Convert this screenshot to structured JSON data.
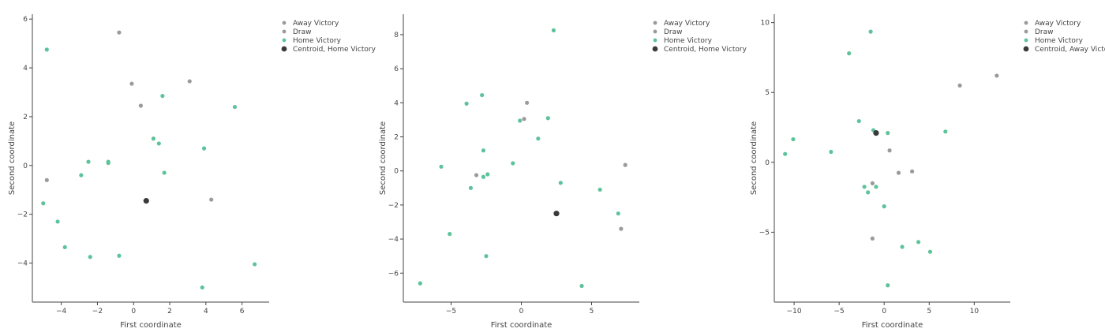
{
  "colors": {
    "away": "#9a9a9a",
    "draw": "#9a9a9a",
    "home": "#5dc39a",
    "centroid": "#3a3a3a",
    "axis": "#444444"
  },
  "chart_data": [
    {
      "type": "scatter",
      "xlabel": "First coordinate",
      "ylabel": "Second coordinate",
      "xlim": [
        -5.6,
        7.5
      ],
      "ylim": [
        -5.6,
        6.2
      ],
      "xticks": [
        -4,
        -2,
        0,
        2,
        4,
        6
      ],
      "yticks": [
        -4,
        -2,
        0,
        2,
        4,
        6
      ],
      "legend_position": "top-right",
      "series": [
        {
          "name": "Away Victory",
          "color_key": "away",
          "points": [
            [
              -0.8,
              5.45
            ],
            [
              3.1,
              3.45
            ]
          ]
        },
        {
          "name": "Draw",
          "color_key": "draw",
          "points": [
            [
              -0.1,
              3.35
            ],
            [
              0.4,
              2.45
            ],
            [
              -4.8,
              -0.6
            ],
            [
              4.3,
              -1.4
            ]
          ]
        },
        {
          "name": "Home Victory",
          "color_key": "home",
          "points": [
            [
              -4.8,
              4.75
            ],
            [
              1.6,
              2.85
            ],
            [
              5.6,
              2.4
            ],
            [
              1.1,
              1.1
            ],
            [
              1.4,
              0.9
            ],
            [
              3.9,
              0.7
            ],
            [
              -2.5,
              0.15
            ],
            [
              -1.4,
              0.1
            ],
            [
              -1.4,
              0.15
            ],
            [
              1.7,
              -0.3
            ],
            [
              -2.9,
              -0.4
            ],
            [
              -5.0,
              -1.55
            ],
            [
              -4.2,
              -2.3
            ],
            [
              -3.8,
              -3.35
            ],
            [
              -2.4,
              -3.75
            ],
            [
              -0.8,
              -3.7
            ],
            [
              6.7,
              -4.05
            ],
            [
              3.8,
              -5.0
            ]
          ]
        },
        {
          "name": "Centroid, Home Victory",
          "color_key": "centroid",
          "centroid": true,
          "points": [
            [
              0.7,
              -1.45
            ]
          ]
        }
      ]
    },
    {
      "type": "scatter",
      "xlabel": "First coordinate",
      "ylabel": "Second coordinate",
      "xlim": [
        -8.4,
        8.4
      ],
      "ylim": [
        -7.7,
        9.2
      ],
      "xticks": [
        -5,
        0,
        5
      ],
      "yticks": [
        -6,
        -4,
        -2,
        0,
        2,
        4,
        6,
        8
      ],
      "legend_position": "top-right",
      "series": [
        {
          "name": "Away Victory",
          "color_key": "away",
          "points": [
            [
              0.2,
              3.05
            ],
            [
              -3.2,
              -0.25
            ],
            [
              7.1,
              -3.4
            ]
          ]
        },
        {
          "name": "Draw",
          "color_key": "draw",
          "points": [
            [
              0.4,
              4.0
            ],
            [
              7.4,
              0.35
            ]
          ]
        },
        {
          "name": "Home Victory",
          "color_key": "home",
          "points": [
            [
              2.3,
              8.25
            ],
            [
              -3.9,
              3.95
            ],
            [
              -2.8,
              4.45
            ],
            [
              -0.1,
              2.95
            ],
            [
              1.9,
              3.1
            ],
            [
              1.2,
              1.9
            ],
            [
              -2.7,
              1.2
            ],
            [
              -5.7,
              0.25
            ],
            [
              -0.6,
              0.45
            ],
            [
              -2.4,
              -0.2
            ],
            [
              -2.7,
              -0.35
            ],
            [
              -3.6,
              -1.0
            ],
            [
              2.8,
              -0.7
            ],
            [
              5.6,
              -1.1
            ],
            [
              6.9,
              -2.5
            ],
            [
              -5.1,
              -3.7
            ],
            [
              -2.5,
              -5.0
            ],
            [
              -7.2,
              -6.6
            ],
            [
              4.3,
              -6.75
            ]
          ]
        },
        {
          "name": "Centroid, Home Victory",
          "color_key": "centroid",
          "centroid": true,
          "points": [
            [
              2.5,
              -2.5
            ]
          ]
        }
      ]
    },
    {
      "type": "scatter",
      "xlabel": "First coordinate",
      "ylabel": "Second coordinate",
      "xlim": [
        -12.2,
        14.0
      ],
      "ylim": [
        -10.0,
        10.6
      ],
      "xticks": [
        -10,
        -5,
        0,
        5,
        10
      ],
      "yticks": [
        -5,
        0,
        5,
        10
      ],
      "legend_position": "top-right",
      "series": [
        {
          "name": "Away Victory",
          "color_key": "away",
          "points": [
            [
              12.5,
              6.2
            ],
            [
              8.4,
              5.5
            ],
            [
              3.1,
              -0.65
            ]
          ]
        },
        {
          "name": "Draw",
          "color_key": "draw",
          "points": [
            [
              0.6,
              0.85
            ],
            [
              1.6,
              -0.75
            ],
            [
              -1.3,
              -1.5
            ],
            [
              -1.3,
              -5.45
            ]
          ]
        },
        {
          "name": "Home Victory",
          "color_key": "home",
          "points": [
            [
              -1.5,
              9.35
            ],
            [
              -3.9,
              7.8
            ],
            [
              -2.8,
              2.95
            ],
            [
              -1.2,
              2.3
            ],
            [
              0.4,
              2.1
            ],
            [
              6.8,
              2.2
            ],
            [
              -10.1,
              1.65
            ],
            [
              -11.0,
              0.6
            ],
            [
              -5.9,
              0.75
            ],
            [
              -2.2,
              -1.75
            ],
            [
              -1.8,
              -2.15
            ],
            [
              -0.9,
              -1.75
            ],
            [
              0.0,
              -3.15
            ],
            [
              3.8,
              -5.7
            ],
            [
              5.1,
              -6.4
            ],
            [
              2.0,
              -6.05
            ],
            [
              0.4,
              -8.8
            ]
          ]
        },
        {
          "name": "Centroid, Away Victory",
          "color_key": "centroid",
          "centroid": true,
          "points": [
            [
              -0.9,
              2.1
            ]
          ]
        }
      ]
    }
  ]
}
